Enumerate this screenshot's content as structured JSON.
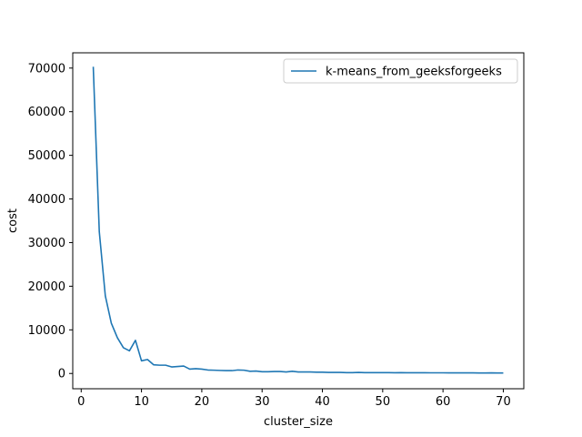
{
  "chart_data": {
    "type": "line",
    "title": "",
    "xlabel": "cluster_size",
    "ylabel": "cost",
    "xlim": [
      -1.4,
      73.4
    ],
    "ylim": [
      -3500,
      73500
    ],
    "xticks": [
      0,
      10,
      20,
      30,
      40,
      50,
      60,
      70
    ],
    "yticks": [
      0,
      10000,
      20000,
      30000,
      40000,
      50000,
      60000,
      70000
    ],
    "grid": false,
    "legend_position": "top-right",
    "colors": {
      "series": "#1f77b4",
      "axes": "#000000"
    },
    "series": [
      {
        "name": "k-means_from_geeksforgeeks",
        "x": [
          2,
          3,
          4,
          5,
          6,
          7,
          8,
          9,
          10,
          11,
          12,
          13,
          14,
          15,
          16,
          17,
          18,
          19,
          20,
          21,
          22,
          23,
          24,
          25,
          26,
          27,
          28,
          29,
          30,
          31,
          32,
          33,
          34,
          35,
          36,
          37,
          38,
          39,
          40,
          41,
          42,
          43,
          44,
          45,
          46,
          47,
          48,
          49,
          50,
          51,
          52,
          53,
          54,
          55,
          56,
          57,
          58,
          59,
          60,
          61,
          62,
          63,
          64,
          65,
          66,
          67,
          68,
          69,
          70
        ],
        "values": [
          70300,
          32500,
          17800,
          11500,
          8200,
          5900,
          5200,
          7600,
          2900,
          3200,
          2000,
          1900,
          1900,
          1500,
          1600,
          1700,
          1000,
          1100,
          1000,
          800,
          750,
          700,
          650,
          650,
          800,
          750,
          500,
          550,
          400,
          400,
          450,
          450,
          350,
          500,
          350,
          350,
          350,
          300,
          300,
          250,
          250,
          250,
          200,
          200,
          250,
          200,
          200,
          200,
          180,
          180,
          170,
          180,
          160,
          160,
          160,
          160,
          150,
          150,
          150,
          130,
          130,
          130,
          130,
          130,
          120,
          120,
          130,
          110,
          120
        ]
      }
    ]
  }
}
